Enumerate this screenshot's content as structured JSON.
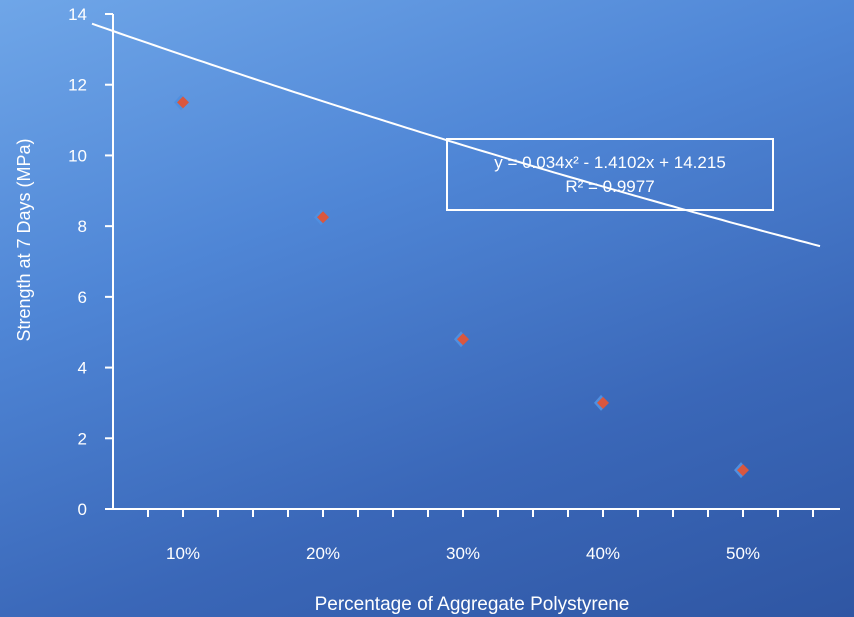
{
  "chart_data": {
    "type": "scatter",
    "xlabel": "Percentage of Aggregate Polystyrene",
    "ylabel": "Strength at 7 Days (MPa)",
    "categories": [
      "10%",
      "20%",
      "30%",
      "40%",
      "50%"
    ],
    "x": [
      1,
      2,
      3,
      4,
      5
    ],
    "values": [
      11.5,
      8.25,
      4.8,
      3.0,
      1.1
    ],
    "ylim": [
      0,
      14
    ],
    "yticks": [
      "0",
      "2",
      "4",
      "6",
      "8",
      "10",
      "12",
      "14"
    ],
    "trendline": {
      "type": "polynomial",
      "equation": "y = 0.034x² - 1.4102x + 14.215",
      "r_squared": "R² = 0.9977"
    },
    "grid": false,
    "colors": {
      "marker": "#d9573f",
      "marker_shadow": "#4f8fe0",
      "axis": "#ffffff",
      "trendline": "#ffffff"
    }
  }
}
